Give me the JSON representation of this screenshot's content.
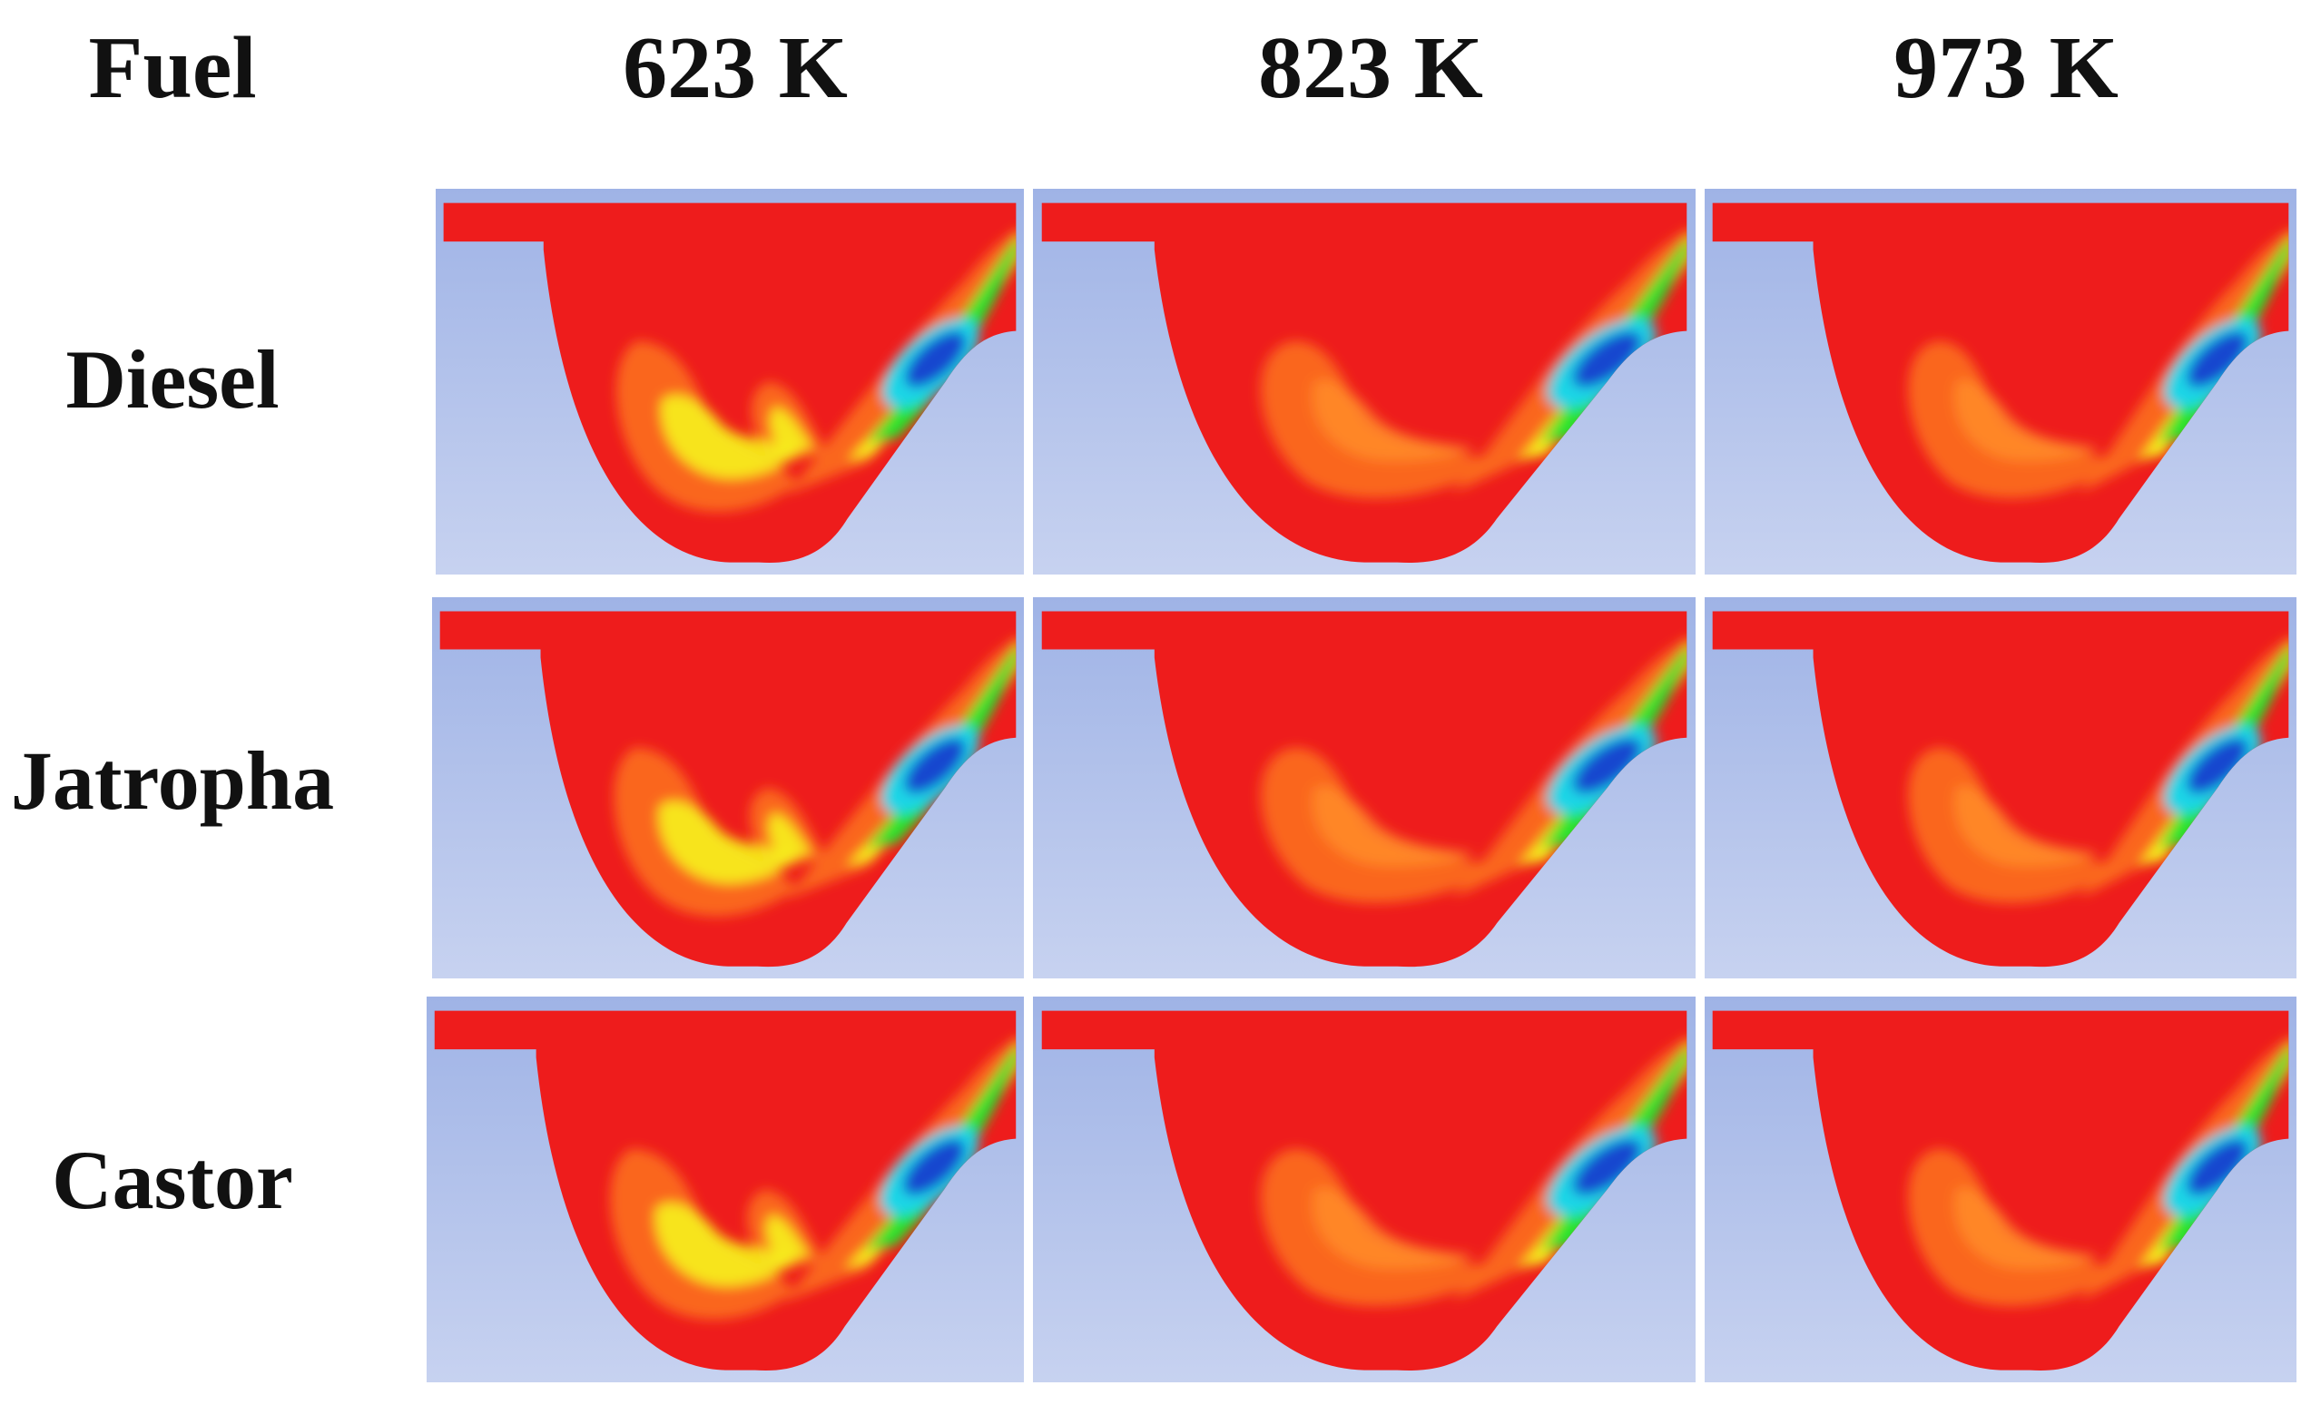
{
  "header": {
    "fuel_label": "Fuel",
    "columns": [
      {
        "label": "623 K"
      },
      {
        "label": "823 K"
      },
      {
        "label": "973 K"
      }
    ]
  },
  "rows": [
    {
      "label": "Diesel"
    },
    {
      "label": "Jatropha"
    },
    {
      "label": "Castor"
    }
  ],
  "colors": {
    "background_top": "#9fb3e6",
    "background_bottom": "#c7d2f0",
    "contour_red": "#ee1c1c",
    "contour_orange": "#fb6a1e",
    "contour_yellow": "#f6f21b",
    "contour_green": "#27e52e",
    "contour_cyan": "#1fd6e6",
    "contour_blue": "#1747cf"
  }
}
